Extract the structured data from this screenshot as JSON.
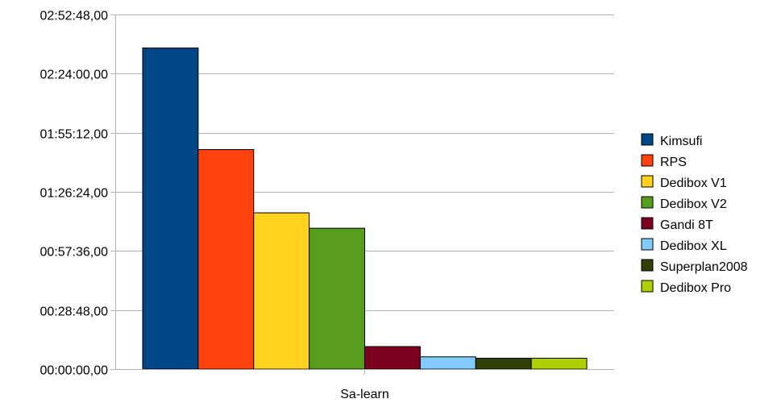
{
  "chart_data": {
    "type": "bar",
    "categories": [
      "Sa-learn"
    ],
    "y_axis": {
      "unit": "seconds",
      "ylim": [
        0,
        10368
      ],
      "ticks": [
        {
          "value": 0,
          "label": "00:00:00,00"
        },
        {
          "value": 1728,
          "label": "00:28:48,00"
        },
        {
          "value": 3456,
          "label": "00:57:36,00"
        },
        {
          "value": 5184,
          "label": "01:26:24,00"
        },
        {
          "value": 6912,
          "label": "01:55:12,00"
        },
        {
          "value": 8640,
          "label": "02:24:00,00"
        },
        {
          "value": 10368,
          "label": "02:52:48,00"
        }
      ]
    },
    "grid": true,
    "legend_position": "right",
    "series": [
      {
        "name": "Kimsufi",
        "color": "#004586",
        "values": [
          9390
        ]
      },
      {
        "name": "RPS",
        "color": "#ff420e",
        "values": [
          6420
        ]
      },
      {
        "name": "Dedibox V1",
        "color": "#ffd320",
        "values": [
          4570
        ]
      },
      {
        "name": "Dedibox V2",
        "color": "#579d1c",
        "values": [
          4120
        ]
      },
      {
        "name": "Gandi 8T",
        "color": "#7e0021",
        "values": [
          660
        ]
      },
      {
        "name": "Dedibox XL",
        "color": "#83caff",
        "values": [
          360
        ]
      },
      {
        "name": "Superplan2008",
        "color": "#314004",
        "values": [
          320
        ]
      },
      {
        "name": "Dedibox Pro",
        "color": "#aecf00",
        "values": [
          320
        ]
      }
    ]
  }
}
